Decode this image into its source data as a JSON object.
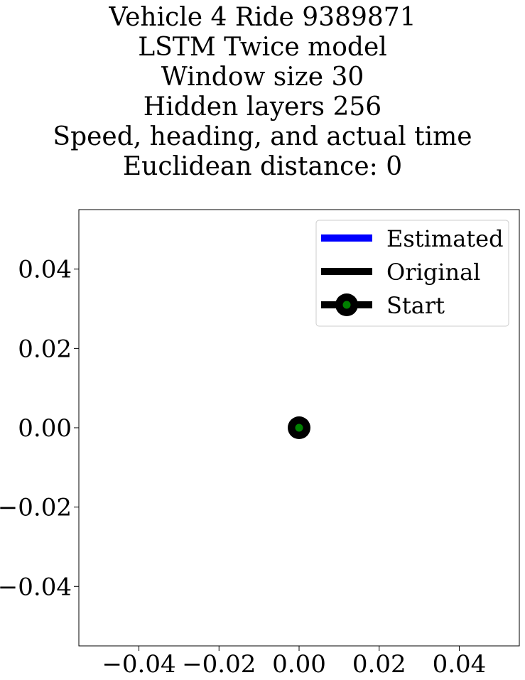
{
  "chart_data": {
    "type": "line",
    "title_lines": [
      "Vehicle 4 Ride 9389871",
      "LSTM Twice model",
      "Window size 30",
      "Hidden layers 256",
      "Speed, heading, and actual time",
      "Euclidean distance: 0"
    ],
    "xlabel": "",
    "ylabel": "",
    "xlim": [
      -0.055,
      0.055
    ],
    "ylim": [
      -0.055,
      0.055
    ],
    "xticks": [
      -0.04,
      -0.02,
      0.0,
      0.02,
      0.04
    ],
    "yticks": [
      -0.04,
      -0.02,
      0.0,
      0.02,
      0.04
    ],
    "xtick_labels": [
      "−0.04",
      "−0.02",
      "0.00",
      "0.02",
      "0.04"
    ],
    "ytick_labels": [
      "−0.04",
      "−0.02",
      "0.00",
      "0.02",
      "0.04"
    ],
    "grid": false,
    "legend_position": "top-right",
    "series": [
      {
        "name": "Estimated",
        "color": "#0000ff",
        "x": [
          0
        ],
        "y": [
          0
        ]
      },
      {
        "name": "Original",
        "color": "#000000",
        "x": [
          0
        ],
        "y": [
          0
        ]
      },
      {
        "name": "Start",
        "color": "#000000",
        "marker_color": "#008000",
        "x": [
          0
        ],
        "y": [
          0
        ]
      }
    ]
  }
}
